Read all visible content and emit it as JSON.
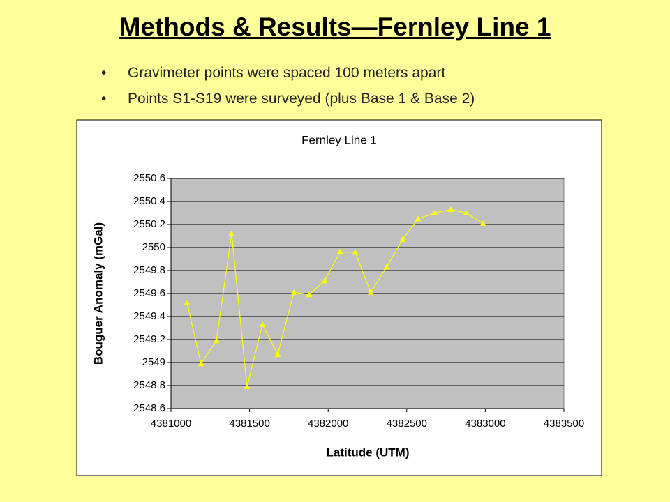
{
  "header": {
    "title": "Methods & Results—Fernley Line 1"
  },
  "bullets": [
    "Gravimeter points were spaced 100 meters apart",
    "Points S1-S19 were surveyed (plus Base 1 & Base 2)"
  ],
  "chart_data": {
    "type": "line",
    "title": "Fernley Line 1",
    "x_label": "Latitude (UTM)",
    "y_label": "Bouguer Anomaly (mGal)",
    "x": [
      4381102,
      4381191,
      4381289,
      4381386,
      4381484,
      4381582,
      4381679,
      4381782,
      4381879,
      4381977,
      4382075,
      4382172,
      4382270,
      4382372,
      4382474,
      4382572,
      4382679,
      4382780,
      4382878,
      4382985
    ],
    "series": [
      {
        "color": "#ffff00",
        "values": [
          2549.52,
          2548.99,
          2549.19,
          2550.12,
          2548.79,
          2549.33,
          2549.07,
          2549.61,
          2549.59,
          2549.71,
          2549.96,
          2549.96,
          2549.61,
          2549.83,
          2550.07,
          2550.25,
          2550.3,
          2550.33,
          2550.3,
          2550.21
        ]
      }
    ],
    "marker": "triangle",
    "xlim": [
      4381000,
      4383500
    ],
    "xticks": [
      4381000,
      4381500,
      4382000,
      4382500,
      4383000,
      4383500
    ],
    "ylim": [
      2548.6,
      2550.6
    ],
    "yticks": [
      2548.6,
      2548.8,
      2549,
      2549.2,
      2549.4,
      2549.6,
      2549.8,
      2550,
      2550.2,
      2550.4,
      2550.6
    ],
    "grid": true,
    "plot_background": "#c0c0c0"
  }
}
